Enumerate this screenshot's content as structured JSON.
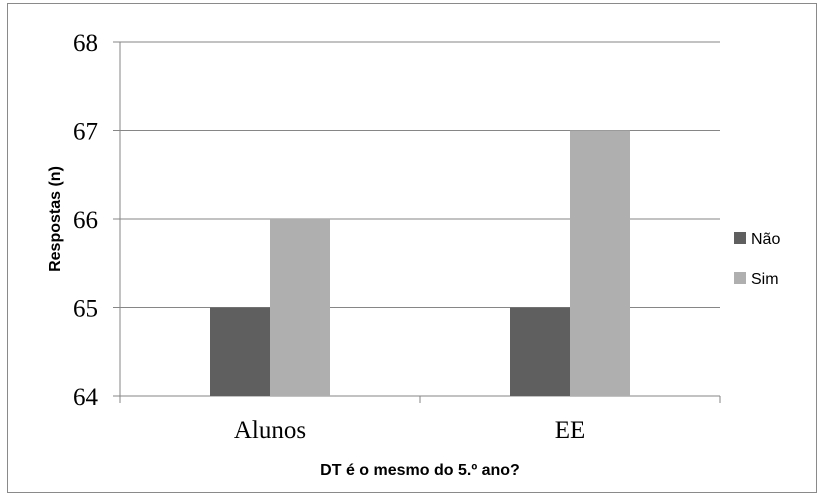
{
  "chart_data": {
    "type": "bar",
    "title": "",
    "xlabel": "DT é o mesmo do 5.º ano?",
    "ylabel": "Respostas (n)",
    "categories": [
      "Alunos",
      "EE"
    ],
    "series": [
      {
        "name": "Não",
        "color": "#5f5f5f",
        "values": [
          65,
          65
        ]
      },
      {
        "name": "Sim",
        "color": "#afafaf",
        "values": [
          66,
          67
        ]
      }
    ],
    "ylim": [
      64,
      68
    ],
    "yticks": [
      "64",
      "65",
      "66",
      "67",
      "68"
    ],
    "grid": true,
    "legend_position": "right"
  }
}
